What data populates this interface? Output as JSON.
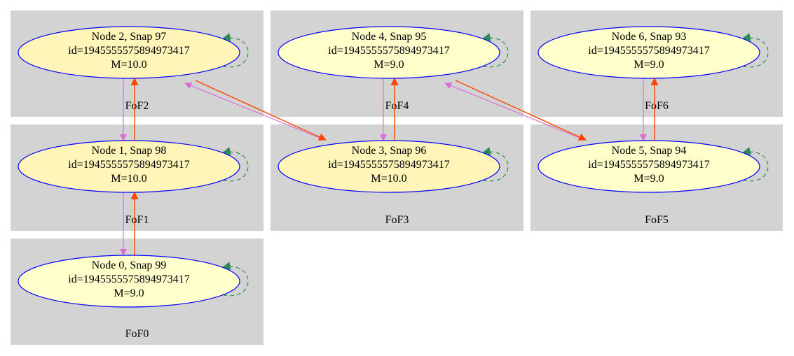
{
  "colors": {
    "background": "#ffffff",
    "cluster_fill": "#d3d3d3",
    "node_border": "#0000ff",
    "node_fill_light": "#ffffcc",
    "node_fill_mid": "#fff5b8",
    "edge_descendant": "#da70d6",
    "edge_progenitor": "#ff4500",
    "edge_self": "#2e8b57"
  },
  "clusters": [
    {
      "id": "fof0",
      "label": "FoF0"
    },
    {
      "id": "fof1",
      "label": "FoF1"
    },
    {
      "id": "fof2",
      "label": "FoF2"
    },
    {
      "id": "fof3",
      "label": "FoF3"
    },
    {
      "id": "fof4",
      "label": "FoF4"
    },
    {
      "id": "fof5",
      "label": "FoF5"
    },
    {
      "id": "fof6",
      "label": "FoF6"
    }
  ],
  "nodes": [
    {
      "id": "n0",
      "title": "Node 0, Snap 99",
      "halo_id": "id=1945555575894973417",
      "mass": "M=9.0",
      "fill": "light"
    },
    {
      "id": "n1",
      "title": "Node 1, Snap 98",
      "halo_id": "id=1945555575894973417",
      "mass": "M=10.0",
      "fill": "mid"
    },
    {
      "id": "n2",
      "title": "Node 2, Snap 97",
      "halo_id": "id=1945555575894973417",
      "mass": "M=10.0",
      "fill": "mid"
    },
    {
      "id": "n3",
      "title": "Node 3, Snap 96",
      "halo_id": "id=1945555575894973417",
      "mass": "M=10.0",
      "fill": "mid"
    },
    {
      "id": "n4",
      "title": "Node 4, Snap 95",
      "halo_id": "id=1945555575894973417",
      "mass": "M=9.0",
      "fill": "light"
    },
    {
      "id": "n5",
      "title": "Node 5, Snap 94",
      "halo_id": "id=1945555575894973417",
      "mass": "M=9.0",
      "fill": "light"
    },
    {
      "id": "n6",
      "title": "Node 6, Snap 93",
      "halo_id": "id=1945555575894973417",
      "mass": "M=9.0",
      "fill": "light"
    }
  ],
  "edges": [
    {
      "from": "n2",
      "to": "n1",
      "kind": "descendant"
    },
    {
      "from": "n1",
      "to": "n2",
      "kind": "progenitor"
    },
    {
      "from": "n1",
      "to": "n0",
      "kind": "descendant"
    },
    {
      "from": "n0",
      "to": "n1",
      "kind": "progenitor"
    },
    {
      "from": "n4",
      "to": "n3",
      "kind": "descendant"
    },
    {
      "from": "n3",
      "to": "n4",
      "kind": "progenitor"
    },
    {
      "from": "n6",
      "to": "n5",
      "kind": "descendant"
    },
    {
      "from": "n5",
      "to": "n6",
      "kind": "progenitor"
    },
    {
      "from": "n3",
      "to": "n2",
      "kind": "descendant"
    },
    {
      "from": "n2",
      "to": "n3",
      "kind": "progenitor"
    },
    {
      "from": "n5",
      "to": "n4",
      "kind": "descendant"
    },
    {
      "from": "n4",
      "to": "n5",
      "kind": "progenitor"
    },
    {
      "from": "n0",
      "to": "n0",
      "kind": "self"
    },
    {
      "from": "n1",
      "to": "n1",
      "kind": "self"
    },
    {
      "from": "n2",
      "to": "n2",
      "kind": "self"
    },
    {
      "from": "n3",
      "to": "n3",
      "kind": "self"
    },
    {
      "from": "n4",
      "to": "n4",
      "kind": "self"
    },
    {
      "from": "n5",
      "to": "n5",
      "kind": "self"
    },
    {
      "from": "n6",
      "to": "n6",
      "kind": "self"
    }
  ]
}
